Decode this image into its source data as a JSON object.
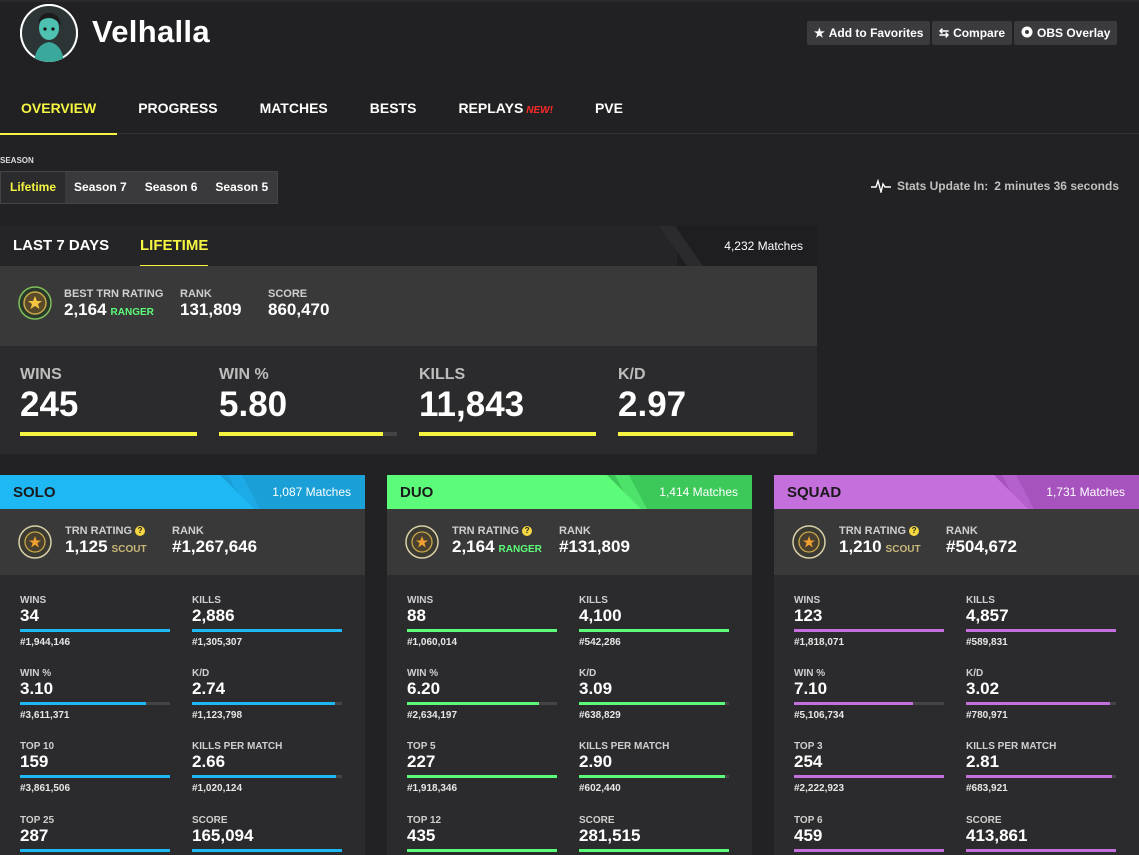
{
  "profile": {
    "name": "Velhalla"
  },
  "header_buttons": [
    {
      "label": "Add to Favorites",
      "icon": "star-icon"
    },
    {
      "label": "Compare",
      "icon": "swap-icon"
    },
    {
      "label": "OBS Overlay",
      "icon": "obs-icon"
    }
  ],
  "nav": {
    "items": [
      {
        "label": "OVERVIEW",
        "active": true
      },
      {
        "label": "PROGRESS"
      },
      {
        "label": "MATCHES"
      },
      {
        "label": "BESTS"
      },
      {
        "label": "REPLAYS",
        "badge": "NEW!"
      },
      {
        "label": "PVE"
      }
    ]
  },
  "season": {
    "label": "SEASON",
    "tabs": [
      "Lifetime",
      "Season 7",
      "Season 6",
      "Season 5"
    ],
    "active": "Lifetime"
  },
  "stats_update": {
    "label": "Stats Update In:",
    "value": "2 minutes 36 seconds"
  },
  "overview": {
    "tabs": [
      "LAST 7 DAYS",
      "LIFETIME"
    ],
    "active_tab": "LIFETIME",
    "matches": "4,232 Matches",
    "best_trn": {
      "label": "BEST TRN RATING",
      "value": "2,164",
      "tier": "RANGER"
    },
    "rank": {
      "label": "RANK",
      "value": "131,809"
    },
    "score": {
      "label": "SCORE",
      "value": "860,470"
    },
    "stats": [
      {
        "label": "WINS",
        "value": "245",
        "bar": 1.0
      },
      {
        "label": "WIN %",
        "value": "5.80",
        "bar": 0.92
      },
      {
        "label": "KILLS",
        "value": "11,843",
        "bar": 1.0
      },
      {
        "label": "K/D",
        "value": "2.97",
        "bar": 0.99
      }
    ]
  },
  "modes": [
    {
      "title": "SOLO",
      "matches": "1,087 Matches",
      "color": "#1eb8f5",
      "dark": "#1a9fd6",
      "trn": {
        "label": "TRN RATING",
        "value": "1,125",
        "tier": "SCOUT",
        "tier_color": "#c9b779"
      },
      "rank": {
        "label": "RANK",
        "value": "#1,267,646"
      },
      "stats": [
        {
          "label": "WINS",
          "value": "34",
          "rank": "#1,944,146",
          "bar": 1.0
        },
        {
          "label": "KILLS",
          "value": "2,886",
          "rank": "#1,305,307",
          "bar": 1.0
        },
        {
          "label": "WIN %",
          "value": "3.10",
          "rank": "#3,611,371",
          "bar": 0.84
        },
        {
          "label": "K/D",
          "value": "2.74",
          "rank": "#1,123,798",
          "bar": 0.95
        },
        {
          "label": "TOP 10",
          "value": "159",
          "rank": "#3,861,506",
          "bar": 1.0
        },
        {
          "label": "KILLS PER MATCH",
          "value": "2.66",
          "rank": "#1,020,124",
          "bar": 0.96
        },
        {
          "label": "TOP 25",
          "value": "287",
          "rank": "",
          "bar": 1.0
        },
        {
          "label": "SCORE",
          "value": "165,094",
          "rank": "",
          "bar": 1.0
        }
      ]
    },
    {
      "title": "DUO",
      "matches": "1,414 Matches",
      "color": "#5dfb7a",
      "dark": "#3dc95a",
      "trn": {
        "label": "TRN RATING",
        "value": "2,164",
        "tier": "RANGER",
        "tier_color": "#5dfb7a"
      },
      "rank": {
        "label": "RANK",
        "value": "#131,809"
      },
      "stats": [
        {
          "label": "WINS",
          "value": "88",
          "rank": "#1,060,014",
          "bar": 1.0
        },
        {
          "label": "KILLS",
          "value": "4,100",
          "rank": "#542,286",
          "bar": 1.0
        },
        {
          "label": "WIN %",
          "value": "6.20",
          "rank": "#2,634,197",
          "bar": 0.88
        },
        {
          "label": "K/D",
          "value": "3.09",
          "rank": "#638,829",
          "bar": 0.97
        },
        {
          "label": "TOP 5",
          "value": "227",
          "rank": "#1,918,346",
          "bar": 1.0
        },
        {
          "label": "KILLS PER MATCH",
          "value": "2.90",
          "rank": "#602,440",
          "bar": 0.97
        },
        {
          "label": "TOP 12",
          "value": "435",
          "rank": "",
          "bar": 1.0
        },
        {
          "label": "SCORE",
          "value": "281,515",
          "rank": "",
          "bar": 1.0
        }
      ]
    },
    {
      "title": "SQUAD",
      "matches": "1,731 Matches",
      "color": "#c46fdb",
      "dark": "#a653be",
      "trn": {
        "label": "TRN RATING",
        "value": "1,210",
        "tier": "SCOUT",
        "tier_color": "#c9b779"
      },
      "rank": {
        "label": "RANK",
        "value": "#504,672"
      },
      "stats": [
        {
          "label": "WINS",
          "value": "123",
          "rank": "#1,818,071",
          "bar": 1.0
        },
        {
          "label": "KILLS",
          "value": "4,857",
          "rank": "#589,831",
          "bar": 1.0
        },
        {
          "label": "WIN %",
          "value": "7.10",
          "rank": "#5,106,734",
          "bar": 0.79
        },
        {
          "label": "K/D",
          "value": "3.02",
          "rank": "#780,971",
          "bar": 0.96
        },
        {
          "label": "TOP 3",
          "value": "254",
          "rank": "#2,222,923",
          "bar": 1.0
        },
        {
          "label": "KILLS PER MATCH",
          "value": "2.81",
          "rank": "#683,921",
          "bar": 0.97
        },
        {
          "label": "TOP 6",
          "value": "459",
          "rank": "",
          "bar": 1.0
        },
        {
          "label": "SCORE",
          "value": "413,861",
          "rank": "",
          "bar": 1.0
        }
      ]
    }
  ]
}
